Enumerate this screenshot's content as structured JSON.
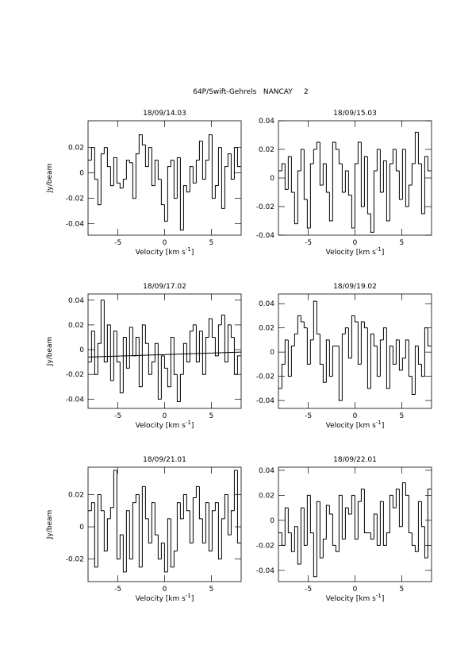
{
  "title": "64P/Swift-Gehrels   NANCAY     2",
  "chart_data": [
    {
      "type": "line",
      "title": "18/09/14.03",
      "xlabel_parts": [
        "Velocity [km s",
        "-1",
        "]"
      ],
      "ylabel": "Jy/beam",
      "x": [
        -8.0,
        -7.66,
        -7.32,
        -6.98,
        -6.64,
        -6.3,
        -5.96,
        -5.62,
        -5.28,
        -4.94,
        -4.6,
        -4.26,
        -3.92,
        -3.58,
        -3.24,
        -2.9,
        -2.56,
        -2.22,
        -1.88,
        -1.54,
        -1.2,
        -0.86,
        -0.52,
        -0.18,
        0.16,
        0.5,
        0.84,
        1.18,
        1.52,
        1.86,
        2.2,
        2.54,
        2.88,
        3.22,
        3.56,
        3.9,
        4.24,
        4.58,
        4.92,
        5.26,
        5.6,
        5.94,
        6.28,
        6.62,
        6.96,
        7.3,
        7.64,
        7.98
      ],
      "values": [
        0.01,
        0.02,
        -0.005,
        -0.025,
        0.015,
        0.02,
        0.005,
        -0.01,
        0.012,
        -0.008,
        -0.012,
        -0.005,
        0.01,
        0.008,
        -0.02,
        0.015,
        0.03,
        0.022,
        0.005,
        0.02,
        -0.01,
        0.01,
        -0.005,
        -0.025,
        -0.038,
        0.005,
        0.01,
        -0.02,
        0.012,
        -0.045,
        -0.01,
        -0.015,
        0.005,
        -0.008,
        0.01,
        0.025,
        -0.005,
        0.01,
        0.03,
        -0.02,
        -0.01,
        0.02,
        -0.028,
        0.005,
        0.015,
        -0.005,
        0.02,
        0.005
      ],
      "xlim": [
        -8.2,
        8.2
      ],
      "ylim": [
        -0.049,
        0.041
      ],
      "xticks": [
        -5,
        0,
        5
      ],
      "yticks": [
        -0.04,
        -0.02,
        0,
        0.02
      ]
    },
    {
      "type": "line",
      "title": "18/09/15.03",
      "xlabel_parts": [
        "Velocity [km s",
        "-1",
        "]"
      ],
      "x": [
        -8.0,
        -7.66,
        -7.32,
        -6.98,
        -6.64,
        -6.3,
        -5.96,
        -5.62,
        -5.28,
        -4.94,
        -4.6,
        -4.26,
        -3.92,
        -3.58,
        -3.24,
        -2.9,
        -2.56,
        -2.22,
        -1.88,
        -1.54,
        -1.2,
        -0.86,
        -0.52,
        -0.18,
        0.16,
        0.5,
        0.84,
        1.18,
        1.52,
        1.86,
        2.2,
        2.54,
        2.88,
        3.22,
        3.56,
        3.9,
        4.24,
        4.58,
        4.92,
        5.26,
        5.6,
        5.94,
        6.28,
        6.62,
        6.96,
        7.3,
        7.64,
        7.98
      ],
      "values": [
        0.005,
        0.01,
        -0.008,
        0.015,
        -0.01,
        -0.032,
        0.005,
        0.02,
        -0.015,
        -0.035,
        0.01,
        0.02,
        0.025,
        -0.005,
        0.01,
        -0.01,
        -0.03,
        0.025,
        0.02,
        0.01,
        -0.01,
        0.005,
        -0.012,
        -0.035,
        0.01,
        0.025,
        -0.02,
        0.015,
        -0.025,
        -0.038,
        0.005,
        0.02,
        -0.01,
        0.012,
        -0.03,
        0.01,
        0.02,
        0.005,
        -0.015,
        0.02,
        -0.02,
        -0.005,
        0.01,
        0.032,
        0.01,
        -0.025,
        0.015,
        0.005
      ],
      "xlim": [
        -8.2,
        8.2
      ],
      "ylim": [
        -0.04,
        0.04
      ],
      "xticks": [
        -5,
        0,
        5
      ],
      "yticks": [
        -0.04,
        -0.02,
        0,
        0.02,
        0.04
      ]
    },
    {
      "type": "line",
      "title": "18/09/17.02",
      "xlabel_parts": [
        "Velocity [km s",
        "-1",
        "]"
      ],
      "ylabel": "Jy/beam",
      "x": [
        -8.0,
        -7.66,
        -7.32,
        -6.98,
        -6.64,
        -6.3,
        -5.96,
        -5.62,
        -5.28,
        -4.94,
        -4.6,
        -4.26,
        -3.92,
        -3.58,
        -3.24,
        -2.9,
        -2.56,
        -2.22,
        -1.88,
        -1.54,
        -1.2,
        -0.86,
        -0.52,
        -0.18,
        0.16,
        0.5,
        0.84,
        1.18,
        1.52,
        1.86,
        2.2,
        2.54,
        2.88,
        3.22,
        3.56,
        3.9,
        4.24,
        4.58,
        4.92,
        5.26,
        5.6,
        5.94,
        6.28,
        6.62,
        6.96,
        7.3,
        7.64,
        7.98
      ],
      "values": [
        -0.01,
        0.015,
        -0.02,
        0.005,
        0.04,
        -0.01,
        0.02,
        -0.025,
        0.015,
        -0.01,
        -0.035,
        0.01,
        -0.015,
        0.018,
        -0.005,
        0.01,
        -0.03,
        0.02,
        0.005,
        -0.02,
        -0.01,
        0.005,
        -0.04,
        -0.005,
        -0.015,
        -0.03,
        0.01,
        -0.02,
        -0.042,
        -0.02,
        0.005,
        -0.01,
        0.015,
        0.02,
        -0.01,
        0.015,
        -0.02,
        0.01,
        0.025,
        0.01,
        -0.005,
        0.02,
        0.028,
        -0.01,
        0.02,
        0.01,
        -0.02,
        -0.005
      ],
      "fit": {
        "x": [
          -8.2,
          8.2
        ],
        "values": [
          -0.006,
          -0.002
        ]
      },
      "xlim": [
        -8.2,
        8.2
      ],
      "ylim": [
        -0.0475,
        0.045
      ],
      "xticks": [
        -5,
        0,
        5
      ],
      "yticks": [
        -0.04,
        -0.02,
        0,
        0.02,
        0.04
      ]
    },
    {
      "type": "line",
      "title": "18/09/19.02",
      "xlabel_parts": [
        "Velocity [km s",
        "-1",
        "]"
      ],
      "x": [
        -8.0,
        -7.66,
        -7.32,
        -6.98,
        -6.64,
        -6.3,
        -5.96,
        -5.62,
        -5.28,
        -4.94,
        -4.6,
        -4.26,
        -3.92,
        -3.58,
        -3.24,
        -2.9,
        -2.56,
        -2.22,
        -1.88,
        -1.54,
        -1.2,
        -0.86,
        -0.52,
        -0.18,
        0.16,
        0.5,
        0.84,
        1.18,
        1.52,
        1.86,
        2.2,
        2.54,
        2.88,
        3.22,
        3.56,
        3.9,
        4.24,
        4.58,
        4.92,
        5.26,
        5.6,
        5.94,
        6.28,
        6.62,
        6.96,
        7.3,
        7.64,
        7.98
      ],
      "values": [
        -0.03,
        -0.01,
        0.01,
        -0.02,
        0.005,
        0.015,
        0.03,
        0.025,
        0.02,
        -0.01,
        0.01,
        0.042,
        0.015,
        -0.01,
        -0.025,
        0.01,
        -0.02,
        0.005,
        0.005,
        -0.04,
        0.015,
        0.02,
        -0.005,
        0.03,
        0.025,
        -0.01,
        0.025,
        0.02,
        -0.03,
        0.015,
        0.005,
        -0.02,
        0.01,
        0.02,
        -0.03,
        0.005,
        -0.01,
        0.01,
        -0.015,
        -0.005,
        0.01,
        -0.02,
        -0.035,
        0.005,
        -0.01,
        -0.02,
        0.02,
        0.005
      ],
      "xlim": [
        -8.2,
        8.2
      ],
      "ylim": [
        -0.0465,
        0.048
      ],
      "xticks": [
        -5,
        0,
        5
      ],
      "yticks": [
        -0.04,
        -0.02,
        0,
        0.02,
        0.04
      ]
    },
    {
      "type": "line",
      "title": "18/09/21.01",
      "xlabel_parts": [
        "Velocity [km s",
        "-1",
        "]"
      ],
      "ylabel": "Jy/beam",
      "x": [
        -8.0,
        -7.66,
        -7.32,
        -6.98,
        -6.64,
        -6.3,
        -5.96,
        -5.62,
        -5.28,
        -4.94,
        -4.6,
        -4.26,
        -3.92,
        -3.58,
        -3.24,
        -2.9,
        -2.56,
        -2.22,
        -1.88,
        -1.54,
        -1.2,
        -0.86,
        -0.52,
        -0.18,
        0.16,
        0.5,
        0.84,
        1.18,
        1.52,
        1.86,
        2.2,
        2.54,
        2.88,
        3.22,
        3.56,
        3.9,
        4.24,
        4.58,
        4.92,
        5.26,
        5.6,
        5.94,
        6.28,
        6.62,
        6.96,
        7.3,
        7.64,
        7.98
      ],
      "values": [
        0.01,
        0.015,
        -0.025,
        0.02,
        0.01,
        -0.015,
        0.005,
        0.012,
        0.035,
        -0.02,
        -0.005,
        -0.028,
        0.01,
        -0.02,
        0.015,
        0.02,
        -0.025,
        0.025,
        0.005,
        -0.01,
        0.015,
        -0.005,
        -0.02,
        -0.01,
        -0.028,
        0.005,
        -0.025,
        -0.015,
        0.015,
        0.005,
        0.02,
        0.01,
        -0.01,
        0.018,
        0.025,
        0.005,
        -0.01,
        0.015,
        -0.015,
        0.01,
        0.015,
        -0.02,
        0.005,
        0.02,
        -0.005,
        0.01,
        0.035,
        -0.01
      ],
      "xlim": [
        -8.2,
        8.2
      ],
      "ylim": [
        -0.034,
        0.037
      ],
      "xticks": [
        -5,
        0,
        5
      ],
      "yticks": [
        -0.02,
        0,
        0.02
      ]
    },
    {
      "type": "line",
      "title": "18/09/22.01",
      "xlabel_parts": [
        "Velocity [km s",
        "-1",
        "]"
      ],
      "x": [
        -8.0,
        -7.66,
        -7.32,
        -6.98,
        -6.64,
        -6.3,
        -5.96,
        -5.62,
        -5.28,
        -4.94,
        -4.6,
        -4.26,
        -3.92,
        -3.58,
        -3.24,
        -2.9,
        -2.56,
        -2.22,
        -1.88,
        -1.54,
        -1.2,
        -0.86,
        -0.52,
        -0.18,
        0.16,
        0.5,
        0.84,
        1.18,
        1.52,
        1.86,
        2.2,
        2.54,
        2.88,
        3.22,
        3.56,
        3.9,
        4.24,
        4.58,
        4.92,
        5.26,
        5.6,
        5.94,
        6.28,
        6.62,
        6.96,
        7.3,
        7.64,
        7.98
      ],
      "values": [
        -0.01,
        -0.02,
        0.01,
        -0.01,
        -0.025,
        -0.005,
        -0.035,
        0.01,
        -0.02,
        0.02,
        -0.01,
        -0.045,
        0.015,
        -0.03,
        -0.015,
        0.012,
        0.005,
        -0.02,
        -0.025,
        0.02,
        -0.015,
        0.01,
        0.005,
        0.02,
        -0.015,
        0.015,
        0.025,
        -0.01,
        -0.01,
        -0.015,
        0.005,
        -0.02,
        0.015,
        -0.02,
        -0.01,
        0.02,
        0.01,
        0.025,
        -0.005,
        0.03,
        0.02,
        -0.01,
        -0.02,
        -0.025,
        0.015,
        -0.005,
        -0.03,
        0.025
      ],
      "xlim": [
        -8.2,
        8.2
      ],
      "ylim": [
        -0.049,
        0.0425
      ],
      "xticks": [
        -5,
        0,
        5
      ],
      "yticks": [
        -0.04,
        -0.02,
        0,
        0.02,
        0.04
      ]
    }
  ]
}
